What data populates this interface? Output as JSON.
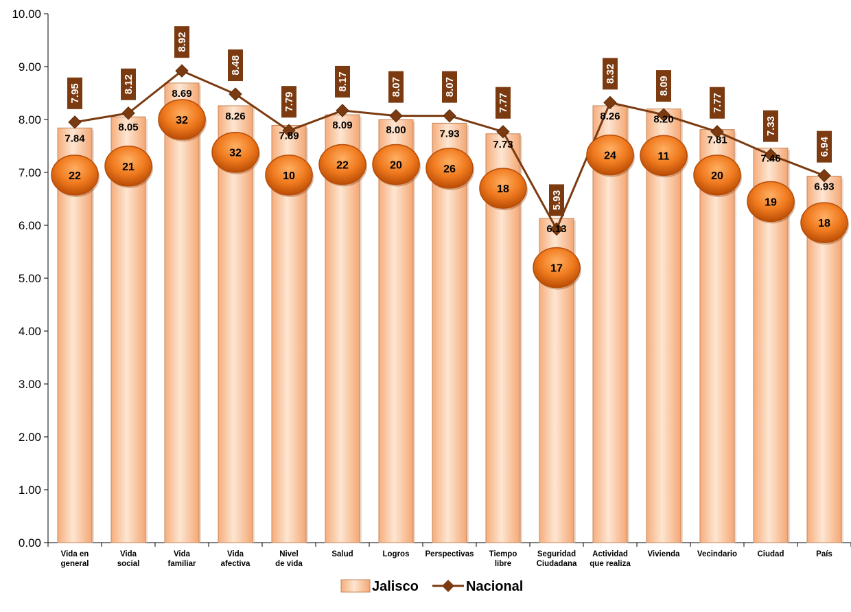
{
  "chart_data": {
    "type": "bar",
    "categories": [
      [
        "Vida en",
        "general"
      ],
      [
        "Vida",
        "social"
      ],
      [
        "Vida",
        "familiar"
      ],
      [
        "Vida",
        "afectiva"
      ],
      [
        "Nivel",
        "de vida"
      ],
      [
        "Salud"
      ],
      [
        "Logros"
      ],
      [
        "Perspectivas"
      ],
      [
        "Tiempo",
        "libre"
      ],
      [
        "Seguridad",
        "Ciudadana"
      ],
      [
        "Actividad",
        "que realiza"
      ],
      [
        "Vivienda"
      ],
      [
        "Vecindario"
      ],
      [
        "Ciudad"
      ],
      [
        "País"
      ]
    ],
    "series": [
      {
        "name": "Jalisco",
        "type": "bar",
        "values": [
          7.84,
          8.05,
          8.69,
          8.26,
          7.89,
          8.09,
          8.0,
          7.93,
          7.73,
          6.13,
          8.26,
          8.2,
          7.81,
          7.46,
          6.93
        ],
        "value_labels": [
          "7.84",
          "8.05",
          "8.69",
          "8.26",
          "7.89",
          "8.09",
          "8.00",
          "7.93",
          "7.73",
          "6.13",
          "8.26",
          "8.20",
          "7.81",
          "7.46",
          "6.93"
        ],
        "ranks": [
          "22",
          "21",
          "32",
          "32",
          "10",
          "22",
          "20",
          "26",
          "18",
          "17",
          "24",
          "11",
          "20",
          "19",
          "18"
        ],
        "rank_positions": [
          6.95,
          7.12,
          8.0,
          7.38,
          6.95,
          7.15,
          7.15,
          7.08,
          6.7,
          5.2,
          7.33,
          7.32,
          6.95,
          6.45,
          6.05
        ]
      },
      {
        "name": "Nacional",
        "type": "line",
        "values": [
          7.95,
          8.12,
          8.92,
          8.48,
          7.79,
          8.17,
          8.07,
          8.07,
          7.77,
          5.93,
          8.32,
          8.09,
          7.77,
          7.33,
          6.94
        ],
        "value_labels": [
          "7.95",
          "8.12",
          "8.92",
          "8.48",
          "7.79",
          "8.17",
          "8.07",
          "8.07",
          "7.77",
          "5.93",
          "8.32",
          "8.09",
          "7.77",
          "7.33",
          "6.94"
        ]
      }
    ],
    "y_ticks": [
      "0.00",
      "1.00",
      "2.00",
      "3.00",
      "4.00",
      "5.00",
      "6.00",
      "7.00",
      "8.00",
      "9.00",
      "10.00"
    ],
    "ylim": [
      0,
      10
    ],
    "legend_position": "bottom-center",
    "grid": false,
    "colors": {
      "bar_light": "#fde1c8",
      "bar_mid": "#f8b58a",
      "bar_edge": "#c58458",
      "rank_fill": "#f07a1e",
      "rank_dark": "#b74c06",
      "line": "#7b3a10",
      "label_box": "#7b3a10"
    }
  }
}
